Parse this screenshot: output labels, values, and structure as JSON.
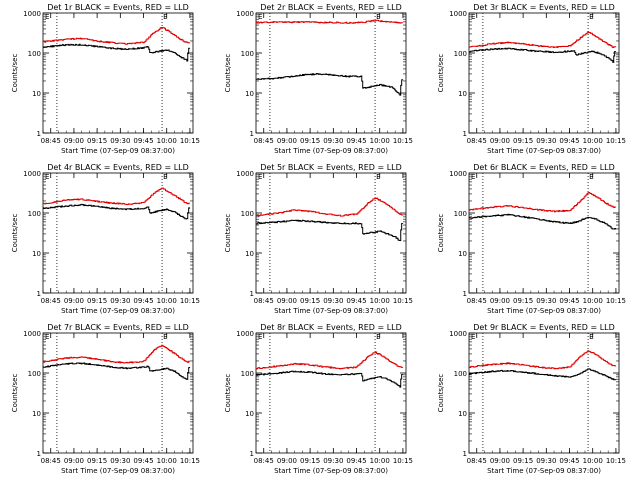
{
  "figure": {
    "colors": {
      "events": "#000000",
      "lld": "#e00000",
      "axes": "#000000",
      "background": "#ffffff"
    }
  },
  "chart_data": [
    {
      "type": "line",
      "title": "Det 1r BLACK = Events, RED = LLD",
      "xlabel": "Start Time (07-Sep-09 08:37:00)",
      "ylabel": "Counts/sec",
      "xticks": [
        "08:45",
        "09:00",
        "09:15",
        "09:30",
        "09:45",
        "10:00",
        "10:15"
      ],
      "yscale": "log",
      "ylim": [
        1,
        1000
      ],
      "yticks": [
        "1",
        "10",
        "100",
        "1000"
      ],
      "marker_label": "E",
      "vlines": [
        "08:49",
        "09:57"
      ],
      "series": [
        {
          "name": "Events",
          "color": "#000000",
          "x": [
            "08:40",
            "08:55",
            "09:05",
            "09:15",
            "09:25",
            "09:35",
            "09:45",
            "09:48",
            "09:49",
            "10:00",
            "10:05",
            "10:10",
            "10:13",
            "10:14",
            "10:15"
          ],
          "values": [
            140,
            160,
            160,
            145,
            130,
            125,
            135,
            145,
            100,
            120,
            100,
            75,
            65,
            130,
            130
          ]
        },
        {
          "name": "LLD",
          "color": "#e00000",
          "x": [
            "08:40",
            "08:55",
            "09:05",
            "09:15",
            "09:25",
            "09:35",
            "09:45",
            "09:52",
            "09:57",
            "10:02",
            "10:08",
            "10:13",
            "10:15"
          ],
          "values": [
            190,
            220,
            230,
            200,
            180,
            170,
            185,
            330,
            440,
            330,
            230,
            180,
            180
          ]
        }
      ]
    },
    {
      "type": "line",
      "title": "Det 2r BLACK = Events, RED = LLD",
      "xlabel": "Start Time (07-Sep-09 08:37:00)",
      "ylabel": "Counts/sec",
      "xticks": [
        "08:45",
        "09:00",
        "09:15",
        "09:30",
        "09:45",
        "10:00",
        "10:15"
      ],
      "yscale": "log",
      "ylim": [
        1,
        1000
      ],
      "yticks": [
        "1",
        "10",
        "100",
        "1000"
      ],
      "marker_label": "E",
      "vlines": [
        "08:49",
        "09:57"
      ],
      "series": [
        {
          "name": "Events",
          "color": "#000000",
          "x": [
            "08:40",
            "08:50",
            "09:00",
            "09:10",
            "09:20",
            "09:30",
            "09:40",
            "09:48",
            "09:49",
            "10:00",
            "10:08",
            "10:13",
            "10:14",
            "10:15"
          ],
          "values": [
            22,
            23,
            25,
            28,
            30,
            28,
            26,
            26,
            13,
            16,
            14,
            9,
            22,
            22
          ]
        },
        {
          "name": "LLD",
          "color": "#e00000",
          "x": [
            "08:40",
            "08:55",
            "09:10",
            "09:25",
            "09:40",
            "09:50",
            "09:57",
            "10:05",
            "10:15"
          ],
          "values": [
            580,
            590,
            590,
            580,
            570,
            590,
            650,
            600,
            560
          ]
        }
      ]
    },
    {
      "type": "line",
      "title": "Det 3r BLACK = Events, RED = LLD",
      "xlabel": "Start Time (07-Sep-09 08:37:00)",
      "ylabel": "Counts/sec",
      "xticks": [
        "08:45",
        "09:00",
        "09:15",
        "09:30",
        "09:45",
        "10:00",
        "10:15"
      ],
      "yscale": "log",
      "ylim": [
        1,
        1000
      ],
      "yticks": [
        "1",
        "10",
        "100",
        "1000"
      ],
      "marker_label": "E",
      "vlines": [
        "08:49",
        "09:57"
      ],
      "series": [
        {
          "name": "Events",
          "color": "#000000",
          "x": [
            "08:40",
            "08:55",
            "09:05",
            "09:15",
            "09:25",
            "09:35",
            "09:45",
            "09:48",
            "09:49",
            "10:00",
            "10:05",
            "10:10",
            "10:13",
            "10:14",
            "10:15"
          ],
          "values": [
            110,
            125,
            130,
            120,
            110,
            105,
            110,
            115,
            90,
            110,
            95,
            75,
            60,
            110,
            110
          ]
        },
        {
          "name": "LLD",
          "color": "#e00000",
          "x": [
            "08:40",
            "08:55",
            "09:05",
            "09:15",
            "09:25",
            "09:35",
            "09:45",
            "09:52",
            "09:57",
            "10:02",
            "10:08",
            "10:13",
            "10:15"
          ],
          "values": [
            140,
            170,
            185,
            170,
            150,
            140,
            150,
            240,
            340,
            260,
            180,
            140,
            140
          ]
        }
      ]
    },
    {
      "type": "line",
      "title": "Det 4r BLACK = Events, RED = LLD",
      "xlabel": "Start Time (07-Sep-09 08:37:00)",
      "ylabel": "Counts/sec",
      "xticks": [
        "08:45",
        "09:00",
        "09:15",
        "09:30",
        "09:45",
        "10:00",
        "10:15"
      ],
      "yscale": "log",
      "ylim": [
        1,
        1000
      ],
      "yticks": [
        "1",
        "10",
        "100",
        "1000"
      ],
      "marker_label": "E",
      "vlines": [
        "08:49",
        "09:57"
      ],
      "series": [
        {
          "name": "Events",
          "color": "#000000",
          "x": [
            "08:40",
            "08:55",
            "09:05",
            "09:15",
            "09:25",
            "09:35",
            "09:45",
            "09:48",
            "09:49",
            "10:00",
            "10:05",
            "10:10",
            "10:13",
            "10:14",
            "10:15"
          ],
          "values": [
            130,
            150,
            160,
            145,
            130,
            125,
            130,
            140,
            100,
            125,
            105,
            80,
            70,
            130,
            130
          ]
        },
        {
          "name": "LLD",
          "color": "#e00000",
          "x": [
            "08:40",
            "08:55",
            "09:05",
            "09:15",
            "09:25",
            "09:35",
            "09:45",
            "09:52",
            "09:57",
            "10:02",
            "10:08",
            "10:13",
            "10:15"
          ],
          "values": [
            170,
            210,
            220,
            195,
            175,
            165,
            180,
            320,
            420,
            320,
            230,
            170,
            170
          ]
        }
      ]
    },
    {
      "type": "line",
      "title": "Det 5r BLACK = Events, RED = LLD",
      "xlabel": "Start Time (07-Sep-09 08:37:00)",
      "ylabel": "Counts/sec",
      "xticks": [
        "08:45",
        "09:00",
        "09:15",
        "09:30",
        "09:45",
        "10:00",
        "10:15"
      ],
      "yscale": "log",
      "ylim": [
        1,
        1000
      ],
      "yticks": [
        "1",
        "10",
        "100",
        "1000"
      ],
      "marker_label": "E",
      "vlines": [
        "08:49",
        "09:57"
      ],
      "series": [
        {
          "name": "Events",
          "color": "#000000",
          "x": [
            "08:40",
            "08:55",
            "09:05",
            "09:15",
            "09:25",
            "09:35",
            "09:45",
            "09:48",
            "09:49",
            "10:00",
            "10:05",
            "10:10",
            "10:13",
            "10:14",
            "10:15"
          ],
          "values": [
            55,
            60,
            65,
            62,
            58,
            55,
            55,
            55,
            30,
            35,
            30,
            25,
            20,
            55,
            55
          ]
        },
        {
          "name": "LLD",
          "color": "#e00000",
          "x": [
            "08:40",
            "08:55",
            "09:05",
            "09:15",
            "09:25",
            "09:35",
            "09:45",
            "09:52",
            "09:57",
            "10:02",
            "10:08",
            "10:13",
            "10:15"
          ],
          "values": [
            85,
            100,
            120,
            110,
            95,
            85,
            95,
            170,
            240,
            190,
            130,
            90,
            90
          ]
        }
      ]
    },
    {
      "type": "line",
      "title": "Det 6r BLACK = Events, RED = LLD",
      "xlabel": "Start Time (07-Sep-09 08:37:00)",
      "ylabel": "Counts/sec",
      "xticks": [
        "08:45",
        "09:00",
        "09:15",
        "09:30",
        "09:45",
        "10:00",
        "10:15"
      ],
      "yscale": "log",
      "ylim": [
        1,
        1000
      ],
      "yticks": [
        "1",
        "10",
        "100",
        "1000"
      ],
      "marker_label": "E",
      "vlines": [
        "08:49",
        "09:57"
      ],
      "series": [
        {
          "name": "Events",
          "color": "#000000",
          "x": [
            "08:40",
            "08:55",
            "09:05",
            "09:15",
            "09:25",
            "09:35",
            "09:45",
            "09:50",
            "09:57",
            "10:02",
            "10:08",
            "10:13",
            "10:15"
          ],
          "values": [
            75,
            85,
            90,
            80,
            70,
            60,
            55,
            60,
            80,
            70,
            55,
            40,
            40
          ]
        },
        {
          "name": "LLD",
          "color": "#e00000",
          "x": [
            "08:40",
            "08:55",
            "09:05",
            "09:15",
            "09:25",
            "09:35",
            "09:45",
            "09:52",
            "09:57",
            "10:02",
            "10:08",
            "10:13",
            "10:15"
          ],
          "values": [
            120,
            140,
            150,
            135,
            120,
            110,
            115,
            200,
            320,
            260,
            180,
            140,
            140
          ]
        }
      ]
    },
    {
      "type": "line",
      "title": "Det 7r BLACK = Events, RED = LLD",
      "xlabel": "Start Time (07-Sep-09 08:37:00)",
      "ylabel": "Counts/sec",
      "xticks": [
        "08:45",
        "09:00",
        "09:15",
        "09:30",
        "09:45",
        "10:00",
        "10:15"
      ],
      "yscale": "log",
      "ylim": [
        1,
        1000
      ],
      "yticks": [
        "1",
        "10",
        "100",
        "1000"
      ],
      "marker_label": "E",
      "vlines": [
        "08:49",
        "09:57"
      ],
      "series": [
        {
          "name": "Events",
          "color": "#000000",
          "x": [
            "08:40",
            "08:55",
            "09:05",
            "09:15",
            "09:25",
            "09:35",
            "09:45",
            "09:48",
            "09:49",
            "10:00",
            "10:05",
            "10:10",
            "10:13",
            "10:14",
            "10:15"
          ],
          "values": [
            140,
            170,
            175,
            160,
            140,
            130,
            140,
            150,
            110,
            130,
            110,
            80,
            70,
            140,
            140
          ]
        },
        {
          "name": "LLD",
          "color": "#e00000",
          "x": [
            "08:40",
            "08:55",
            "09:05",
            "09:15",
            "09:25",
            "09:35",
            "09:45",
            "09:52",
            "09:57",
            "10:02",
            "10:08",
            "10:13",
            "10:15"
          ],
          "values": [
            190,
            235,
            250,
            220,
            190,
            180,
            195,
            380,
            500,
            370,
            250,
            190,
            190
          ]
        }
      ]
    },
    {
      "type": "line",
      "title": "Det 8r BLACK = Events, RED = LLD",
      "xlabel": "Start Time (07-Sep-09 08:37:00)",
      "ylabel": "Counts/sec",
      "xticks": [
        "08:45",
        "09:00",
        "09:15",
        "09:30",
        "09:45",
        "10:00",
        "10:15"
      ],
      "yscale": "log",
      "ylim": [
        1,
        1000
      ],
      "yticks": [
        "1",
        "10",
        "100",
        "1000"
      ],
      "marker_label": "E",
      "vlines": [
        "08:49",
        "09:57"
      ],
      "series": [
        {
          "name": "Events",
          "color": "#000000",
          "x": [
            "08:40",
            "08:55",
            "09:05",
            "09:15",
            "09:25",
            "09:35",
            "09:45",
            "09:48",
            "09:49",
            "10:00",
            "10:05",
            "10:10",
            "10:13",
            "10:14",
            "10:15"
          ],
          "values": [
            90,
            100,
            110,
            105,
            95,
            90,
            95,
            100,
            65,
            80,
            70,
            55,
            45,
            90,
            90
          ]
        },
        {
          "name": "LLD",
          "color": "#e00000",
          "x": [
            "08:40",
            "08:55",
            "09:05",
            "09:15",
            "09:25",
            "09:35",
            "09:45",
            "09:52",
            "09:57",
            "10:02",
            "10:08",
            "10:13",
            "10:15"
          ],
          "values": [
            130,
            150,
            170,
            160,
            140,
            130,
            140,
            250,
            330,
            260,
            180,
            140,
            140
          ]
        }
      ]
    },
    {
      "type": "line",
      "title": "Det 9r BLACK = Events, RED = LLD",
      "xlabel": "Start Time (07-Sep-09 08:37:00)",
      "ylabel": "Counts/sec",
      "xticks": [
        "08:45",
        "09:00",
        "09:15",
        "09:30",
        "09:45",
        "10:00",
        "10:15"
      ],
      "yscale": "log",
      "ylim": [
        1,
        1000
      ],
      "yticks": [
        "1",
        "10",
        "100",
        "1000"
      ],
      "marker_label": "E",
      "vlines": [
        "08:49",
        "09:57"
      ],
      "series": [
        {
          "name": "Events",
          "color": "#000000",
          "x": [
            "08:40",
            "08:55",
            "09:05",
            "09:15",
            "09:25",
            "09:35",
            "09:45",
            "09:50",
            "09:57",
            "10:02",
            "10:08",
            "10:13",
            "10:15"
          ],
          "values": [
            95,
            110,
            115,
            105,
            95,
            85,
            80,
            90,
            125,
            110,
            85,
            70,
            70
          ]
        },
        {
          "name": "LLD",
          "color": "#e00000",
          "x": [
            "08:40",
            "08:55",
            "09:05",
            "09:15",
            "09:25",
            "09:35",
            "09:45",
            "09:52",
            "09:57",
            "10:02",
            "10:08",
            "10:13",
            "10:15"
          ],
          "values": [
            140,
            165,
            175,
            160,
            140,
            130,
            140,
            260,
            360,
            290,
            200,
            150,
            150
          ]
        }
      ]
    }
  ]
}
